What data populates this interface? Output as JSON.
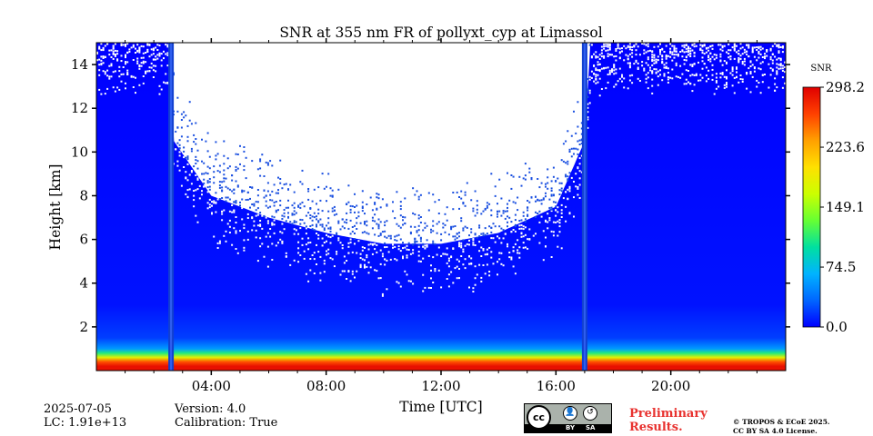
{
  "chart_data": {
    "type": "heatmap",
    "title": "SNR at 355 nm FR of pollyxt_cyp at Limassol",
    "xlabel": "Time [UTC]",
    "ylabel": "Height [km]",
    "xlim": [
      0,
      24
    ],
    "ylim": [
      0,
      15
    ],
    "x_ticks": [
      "04:00",
      "08:00",
      "12:00",
      "16:00",
      "20:00"
    ],
    "x_tick_values": [
      4,
      8,
      12,
      16,
      20
    ],
    "y_ticks": [
      "2",
      "4",
      "6",
      "8",
      "10",
      "12",
      "14"
    ],
    "y_tick_values": [
      2,
      4,
      6,
      8,
      10,
      12,
      14
    ],
    "colorbar": {
      "label": "SNR",
      "range": [
        0.0,
        298.2
      ],
      "ticks": [
        "298.2",
        "223.6",
        "149.1",
        "74.5",
        "0.0"
      ],
      "tick_values": [
        298.2,
        223.6,
        149.1,
        74.5,
        0.0
      ],
      "colors": [
        "#0000ff",
        "#0066ff",
        "#00b3ff",
        "#00e0a0",
        "#66ff33",
        "#ccff00",
        "#ffe000",
        "#ffa000",
        "#ff4000",
        "#e00000"
      ]
    },
    "missing_data_color": "#ffffff",
    "gaps_utc": [
      2.6,
      17.0
    ],
    "signal_top_km": [
      [
        0.0,
        15.0
      ],
      [
        2.5,
        15.0
      ],
      [
        2.7,
        10.5
      ],
      [
        4.0,
        8.0
      ],
      [
        6.0,
        7.0
      ],
      [
        8.0,
        6.3
      ],
      [
        10.0,
        5.8
      ],
      [
        12.0,
        5.8
      ],
      [
        14.0,
        6.3
      ],
      [
        16.0,
        7.5
      ],
      [
        17.0,
        10.5
      ],
      [
        17.2,
        15.0
      ],
      [
        24.0,
        15.0
      ]
    ],
    "near_surface_snr": [
      [
        0.2,
        290
      ],
      [
        0.4,
        260
      ],
      [
        0.6,
        180
      ],
      [
        0.8,
        110
      ],
      [
        1.0,
        55
      ],
      [
        1.5,
        20
      ],
      [
        3.0,
        6
      ],
      [
        15.0,
        0
      ]
    ]
  },
  "footer": {
    "date": "2025-07-05",
    "lc": "LC: 1.91e+13",
    "version": "Version: 4.0",
    "calibration": "Calibration: True",
    "preliminary_line1": "Preliminary",
    "preliminary_line2": "Results.",
    "copyright_line1": "© TROPOS & ECoE 2025.",
    "copyright_line2": "CC BY SA 4.0 License.",
    "license_badge": {
      "cc": "cc",
      "by": "BY",
      "sa": "SA"
    }
  }
}
